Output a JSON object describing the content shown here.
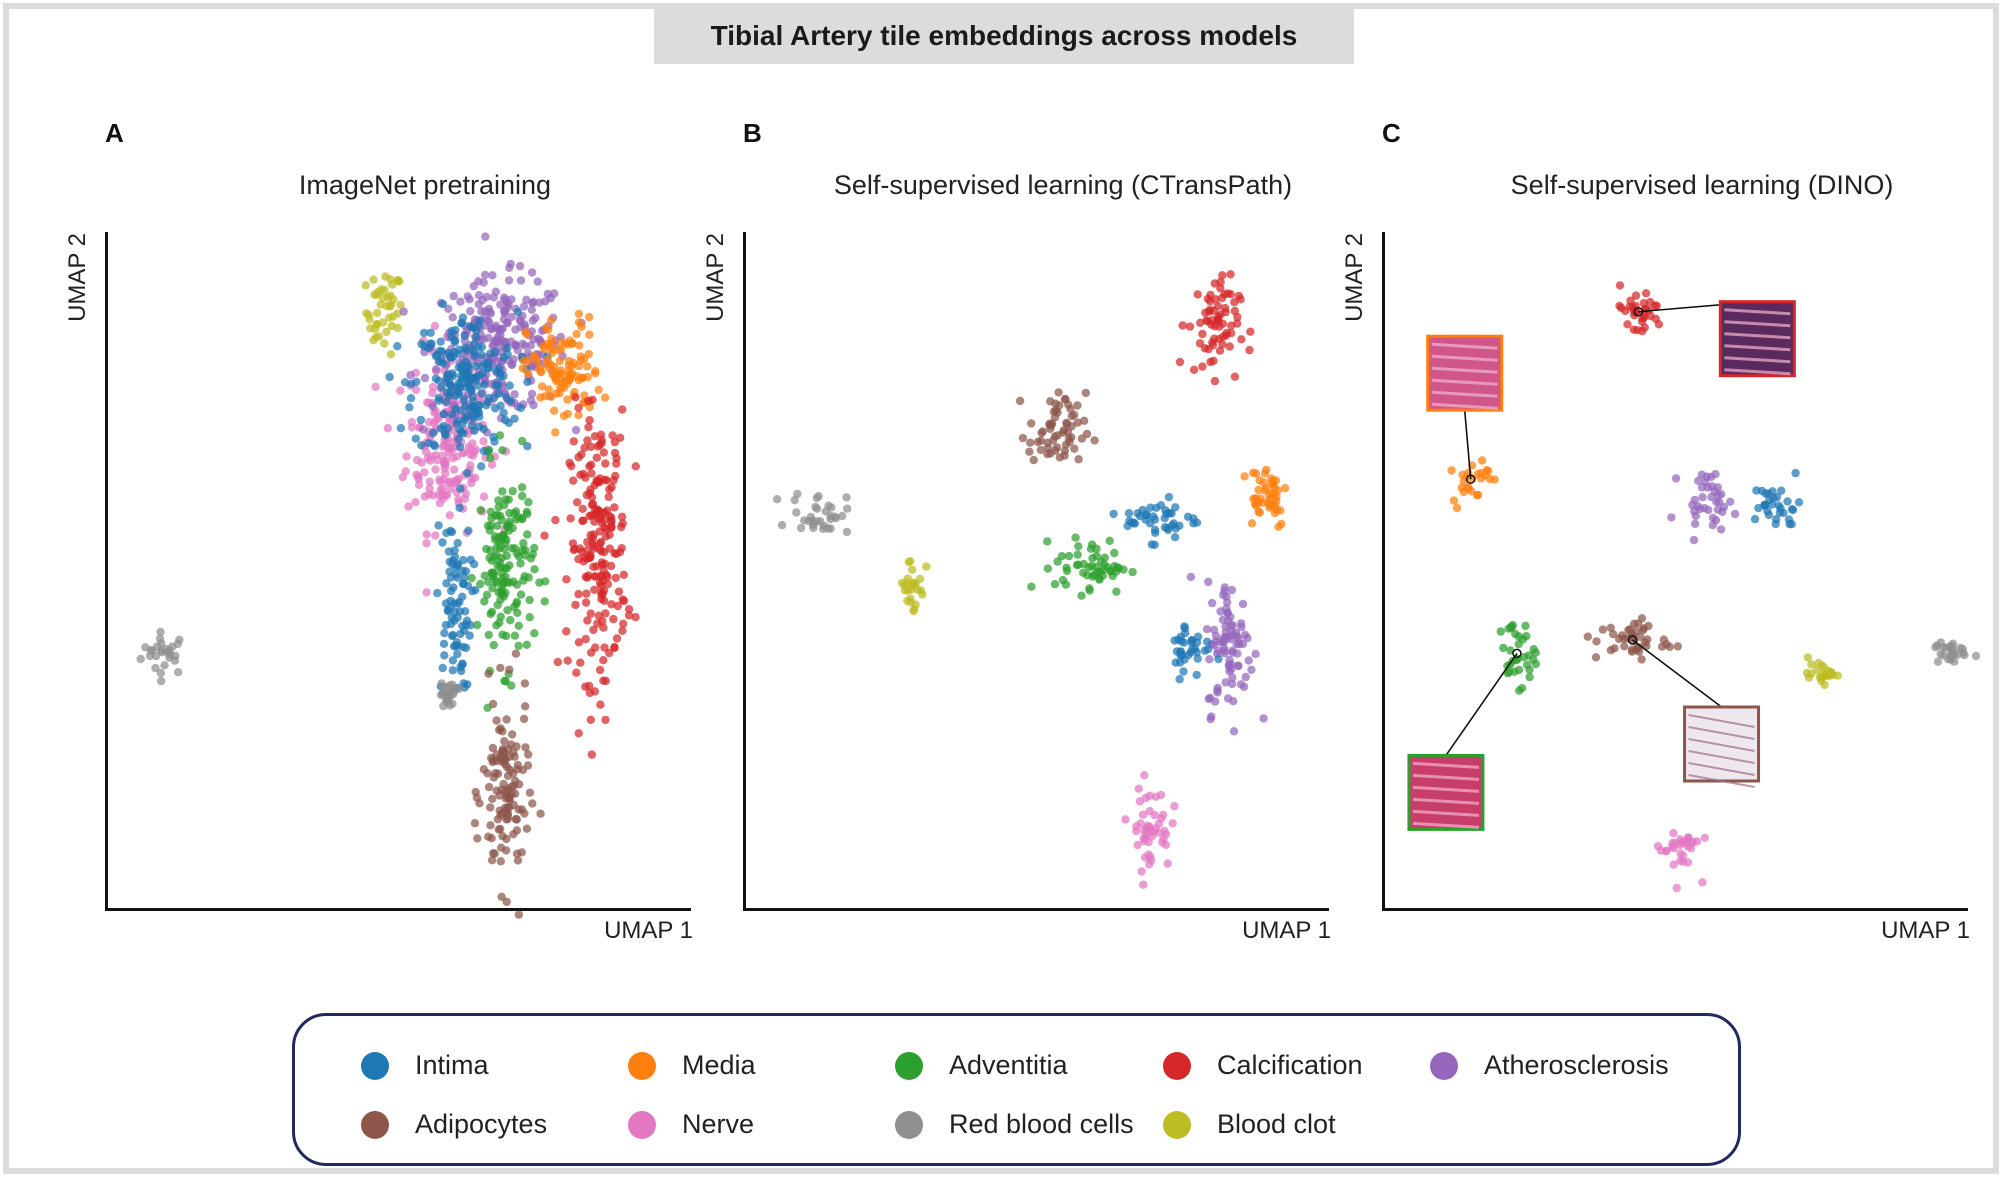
{
  "figure_title": "Tibial Artery tile embeddings across models",
  "colors": {
    "Intima": "#1f77b4",
    "Media": "#ff7f0e",
    "Adventitia": "#2ca02c",
    "Calcification": "#d62728",
    "Atherosclerosis": "#9467bd",
    "Adipocytes": "#8c564b",
    "Nerve": "#e377c2",
    "Red blood cells": "#8f8f8f",
    "Blood clot": "#bcbd22"
  },
  "legend": {
    "items": [
      {
        "label": "Intima",
        "color": "#1f77b4"
      },
      {
        "label": "Media",
        "color": "#ff7f0e"
      },
      {
        "label": "Adventitia",
        "color": "#2ca02c"
      },
      {
        "label": "Calcification",
        "color": "#d62728"
      },
      {
        "label": "Atherosclerosis",
        "color": "#9467bd"
      },
      {
        "label": "Adipocytes",
        "color": "#8c564b"
      },
      {
        "label": "Nerve",
        "color": "#e377c2"
      },
      {
        "label": "Red blood cells",
        "color": "#8f8f8f"
      },
      {
        "label": "Blood clot",
        "color": "#bcbd22"
      }
    ]
  },
  "chart_data": [
    {
      "type": "scatter",
      "panel": "A",
      "title": "ImageNet pretraining",
      "xlabel": "UMAP 1",
      "ylabel": "UMAP 2",
      "xlim": [
        0,
        10
      ],
      "ylim": [
        0,
        10
      ],
      "clusters": [
        {
          "class": "Red blood cells",
          "cx": 1.0,
          "cy": 3.8,
          "rx": 0.45,
          "ry": 0.35
        },
        {
          "class": "Blood clot",
          "cx": 4.8,
          "cy": 8.9,
          "rx": 0.35,
          "ry": 0.7
        },
        {
          "class": "Nerve",
          "cx": 5.9,
          "cy": 7.0,
          "rx": 0.8,
          "ry": 1.5
        },
        {
          "class": "Atherosclerosis",
          "cx": 6.8,
          "cy": 8.4,
          "rx": 1.3,
          "ry": 1.1
        },
        {
          "class": "Intima",
          "cx": 6.2,
          "cy": 7.8,
          "rx": 1.0,
          "ry": 1.2
        },
        {
          "class": "Intima",
          "cx": 6.0,
          "cy": 4.5,
          "rx": 0.35,
          "ry": 1.4
        },
        {
          "class": "Media",
          "cx": 7.9,
          "cy": 8.0,
          "rx": 0.7,
          "ry": 0.9
        },
        {
          "class": "Calcification",
          "cx": 8.5,
          "cy": 5.4,
          "rx": 0.55,
          "ry": 2.2
        },
        {
          "class": "Adventitia",
          "cx": 6.9,
          "cy": 5.1,
          "rx": 0.55,
          "ry": 1.6
        },
        {
          "class": "Adipocytes",
          "cx": 6.9,
          "cy": 1.7,
          "rx": 0.45,
          "ry": 1.6
        },
        {
          "class": "Red blood cells",
          "cx": 5.9,
          "cy": 3.2,
          "rx": 0.2,
          "ry": 0.2
        }
      ]
    },
    {
      "type": "scatter",
      "panel": "B",
      "title": "Self-supervised learning (CTransPath)",
      "xlabel": "UMAP 1",
      "ylabel": "UMAP 2",
      "xlim": [
        0,
        10
      ],
      "ylim": [
        0,
        10
      ],
      "clusters": [
        {
          "class": "Red blood cells",
          "cx": 1.3,
          "cy": 5.9,
          "rx": 0.55,
          "ry": 0.35
        },
        {
          "class": "Blood clot",
          "cx": 2.9,
          "cy": 4.8,
          "rx": 0.25,
          "ry": 0.55
        },
        {
          "class": "Calcification",
          "cx": 8.1,
          "cy": 8.7,
          "rx": 0.5,
          "ry": 0.8
        },
        {
          "class": "Adipocytes",
          "cx": 5.4,
          "cy": 7.1,
          "rx": 0.55,
          "ry": 0.65
        },
        {
          "class": "Adventitia",
          "cx": 6.0,
          "cy": 5.1,
          "rx": 0.7,
          "ry": 0.45
        },
        {
          "class": "Intima",
          "cx": 7.2,
          "cy": 5.8,
          "rx": 0.7,
          "ry": 0.35
        },
        {
          "class": "Media",
          "cx": 9.0,
          "cy": 6.2,
          "rx": 0.45,
          "ry": 0.6
        },
        {
          "class": "Atherosclerosis",
          "cx": 8.4,
          "cy": 3.9,
          "rx": 0.45,
          "ry": 1.1
        },
        {
          "class": "Intima",
          "cx": 7.7,
          "cy": 3.9,
          "rx": 0.4,
          "ry": 0.5
        },
        {
          "class": "Nerve",
          "cx": 7.0,
          "cy": 1.2,
          "rx": 0.4,
          "ry": 0.7
        }
      ]
    },
    {
      "type": "scatter",
      "panel": "C",
      "title": "Self-supervised learning (DINO)",
      "xlabel": "UMAP 1",
      "ylabel": "UMAP 2",
      "xlim": [
        0,
        10
      ],
      "ylim": [
        0,
        10
      ],
      "clusters": [
        {
          "class": "Calcification",
          "cx": 4.4,
          "cy": 8.9,
          "rx": 0.5,
          "ry": 0.4
        },
        {
          "class": "Media",
          "cx": 1.5,
          "cy": 6.4,
          "rx": 0.35,
          "ry": 0.4
        },
        {
          "class": "Atherosclerosis",
          "cx": 5.6,
          "cy": 6.1,
          "rx": 0.5,
          "ry": 0.45
        },
        {
          "class": "Intima",
          "cx": 6.8,
          "cy": 6.0,
          "rx": 0.45,
          "ry": 0.4
        },
        {
          "class": "Adipocytes",
          "cx": 4.3,
          "cy": 4.0,
          "rx": 0.7,
          "ry": 0.35
        },
        {
          "class": "Adventitia",
          "cx": 2.3,
          "cy": 3.8,
          "rx": 0.35,
          "ry": 0.55
        },
        {
          "class": "Blood clot",
          "cx": 7.6,
          "cy": 3.5,
          "rx": 0.3,
          "ry": 0.15
        },
        {
          "class": "Red blood cells",
          "cx": 9.8,
          "cy": 3.8,
          "rx": 0.35,
          "ry": 0.2
        },
        {
          "class": "Nerve",
          "cx": 5.1,
          "cy": 0.9,
          "rx": 0.4,
          "ry": 0.45
        }
      ],
      "insets": [
        {
          "class": "Media",
          "cx": 1.5,
          "cy": 6.4
        },
        {
          "class": "Calcification",
          "cx": 4.4,
          "cy": 8.9
        },
        {
          "class": "Adventitia",
          "cx": 2.3,
          "cy": 3.8
        },
        {
          "class": "Adipocytes",
          "cx": 4.3,
          "cy": 4.0
        }
      ]
    }
  ]
}
